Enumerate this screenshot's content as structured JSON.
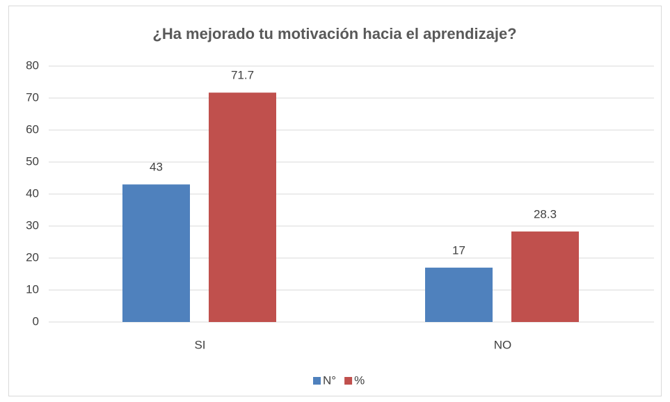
{
  "chart_data": {
    "type": "bar",
    "title": "¿Ha mejorado tu motivación hacia el aprendizaje?",
    "categories": [
      "SI",
      "NO"
    ],
    "series": [
      {
        "name": "N°",
        "color": "#4f81bd",
        "values": [
          43,
          17
        ]
      },
      {
        "name": "%",
        "color": "#c0504d",
        "values": [
          71.7,
          28.3
        ]
      }
    ],
    "ylim": [
      0,
      80
    ],
    "yticks": [
      0,
      10,
      20,
      30,
      40,
      50,
      60,
      70,
      80
    ],
    "grid": true,
    "legend": "bottom"
  }
}
